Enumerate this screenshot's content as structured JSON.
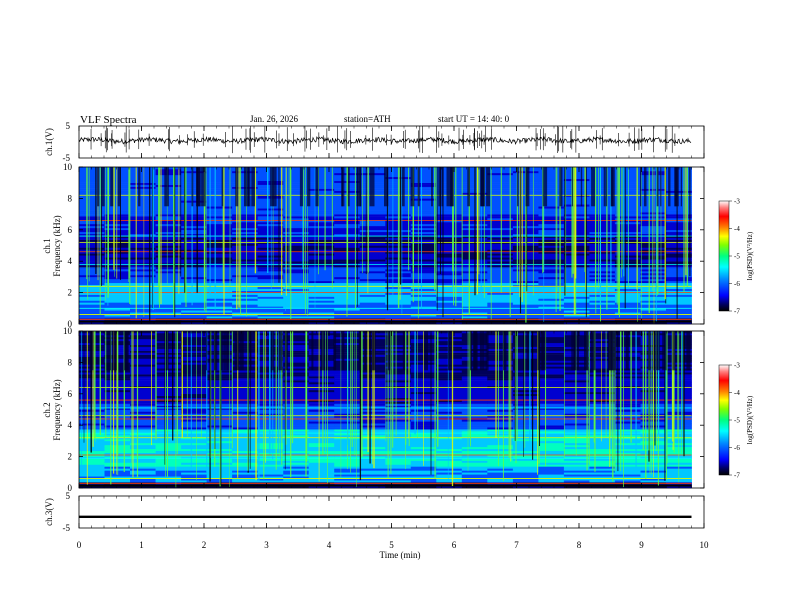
{
  "header": {
    "title": "VLF  Spectra",
    "date": "Jan. 26, 2026",
    "station": "station=ATH",
    "start": "start  UT  =   14: 40: 0"
  },
  "colors": {
    "trace": "#000000",
    "colormap": [
      "#000000",
      "#0000a0",
      "#0000ff",
      "#0080ff",
      "#00ffff",
      "#00ff80",
      "#80ff00",
      "#ffff00",
      "#ff8000",
      "#ff0000",
      "#ff8080",
      "#ffffff"
    ]
  },
  "chart_data": [
    {
      "type": "line",
      "id": "ch1-waveform",
      "ylabel": "ch.1(V)",
      "ylim": [
        -5,
        5
      ],
      "yticks": [
        "5",
        "-5"
      ],
      "xlim": [
        0,
        10
      ],
      "note_values": "baseline near +0.5 V with spikes",
      "baseline": 0.5
    },
    {
      "type": "heatmap",
      "id": "ch1-spectrogram",
      "ylabel": "ch.1\nFrequency  (kHz)",
      "ylabel_lines": [
        "ch.1",
        "Frequency  (kHz)"
      ],
      "ylim": [
        0,
        10
      ],
      "yticks": [
        "0",
        "2",
        "4",
        "6",
        "8",
        "10"
      ],
      "xlim": [
        0,
        10
      ],
      "data_end_min": 9.8,
      "colorbar": {
        "label": "log(PSD)(V²/Hz)",
        "range": [
          -7,
          -3
        ],
        "ticks": [
          "-3",
          "-4",
          "-5",
          "-6",
          "-7"
        ]
      }
    },
    {
      "type": "heatmap",
      "id": "ch2-spectrogram",
      "ylabel": "ch.2\nFrequency  (kHz)",
      "ylabel_lines": [
        "ch.2",
        "Frequency  (kHz)"
      ],
      "ylim": [
        0,
        10
      ],
      "yticks": [
        "0",
        "2",
        "4",
        "6",
        "8",
        "10"
      ],
      "xlim": [
        0,
        10
      ],
      "data_end_min": 9.8,
      "colorbar": {
        "label": "log(PSD)(V²/Hz)",
        "range": [
          -7,
          -3
        ],
        "ticks": [
          "-3",
          "-4",
          "-5",
          "-6",
          "-7"
        ]
      }
    },
    {
      "type": "line",
      "id": "ch3-waveform",
      "ylabel": "ch.3(V)",
      "ylim": [
        -5,
        5
      ],
      "yticks": [
        "5",
        "-5"
      ],
      "xlim": [
        0,
        10
      ],
      "baseline": -1.5
    }
  ],
  "xaxis": {
    "label": "Time  (min)",
    "ticks": [
      "0",
      "1",
      "2",
      "3",
      "4",
      "5",
      "6",
      "7",
      "8",
      "9",
      "10"
    ]
  }
}
